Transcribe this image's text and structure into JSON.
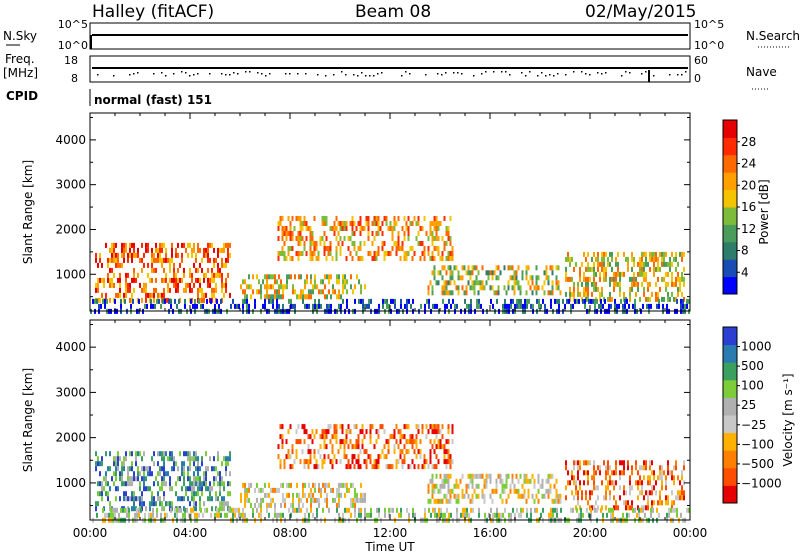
{
  "header": {
    "station": "Halley (fitACF)",
    "beam": "Beam 08",
    "date": "02/May/2015"
  },
  "top_panels": {
    "nsky_label": "N.Sky",
    "nsky_ticks": [
      "10^5",
      "10^0"
    ],
    "nsearch_label": "N.Search",
    "nsearch_ticks": [
      "10^5",
      "10^0"
    ],
    "freq_label": "Freq.",
    "freq_unit": "[MHz]",
    "freq_ticks": [
      "18",
      "8"
    ],
    "nave_label": "Nave",
    "nave_ticks": [
      "60",
      "0"
    ],
    "cpid_label": "CPID",
    "cpid_value": "normal (fast) 151"
  },
  "colors": {
    "power_scale": [
      "#0000ff",
      "#1a4db3",
      "#2e7d6b",
      "#4a9c5a",
      "#7dbb3a",
      "#f5c400",
      "#ff9f00",
      "#ff6a00",
      "#ff2a00",
      "#e60000"
    ],
    "velocity_scale": [
      "#e60000",
      "#ff4d00",
      "#ff8000",
      "#ffb000",
      "#c8c8c8",
      "#b0b0b0",
      "#7dcc3a",
      "#3aa060",
      "#2a7bb0",
      "#2b3fd0"
    ]
  },
  "chart_data": [
    {
      "type": "heatmap",
      "name": "power",
      "xlabel": "",
      "ylabel": "Slant Range [km]",
      "xlim": [
        0,
        24
      ],
      "ylim": [
        180,
        4600
      ],
      "yticks": [
        "1000",
        "2000",
        "3000",
        "4000"
      ],
      "colorbar_label": "Power [dB]",
      "colorbar_ticks": [
        "4",
        "8",
        "12",
        "16",
        "20",
        "24",
        "28"
      ],
      "scatter_regions": [
        {
          "t0": 0.2,
          "t1": 5.6,
          "r0": 400,
          "r1": 1700,
          "level": 0.75
        },
        {
          "t0": 6.0,
          "t1": 11.0,
          "r0": 500,
          "r1": 1000,
          "level": 0.55
        },
        {
          "t0": 7.5,
          "t1": 14.5,
          "r0": 1400,
          "r1": 2300,
          "level": 0.65
        },
        {
          "t0": 13.5,
          "t1": 18.8,
          "r0": 600,
          "r1": 1200,
          "level": 0.5
        },
        {
          "t0": 19.0,
          "t1": 23.8,
          "r0": 400,
          "r1": 1500,
          "level": 0.55
        },
        {
          "t0": 0.0,
          "t1": 24.0,
          "r0": 200,
          "r1": 450,
          "level": 0.15
        }
      ]
    },
    {
      "type": "heatmap",
      "name": "velocity",
      "xlabel": "Time UT",
      "ylabel": "Slant Range [km]",
      "xlim": [
        0,
        24
      ],
      "ylim": [
        180,
        4600
      ],
      "xticks": [
        "00:00",
        "04:00",
        "08:00",
        "12:00",
        "16:00",
        "20:00",
        "00:00"
      ],
      "yticks": [
        "1000",
        "2000",
        "3000",
        "4000"
      ],
      "colorbar_label": "Velocity [m s⁻¹]",
      "colorbar_ticks": [
        "1000",
        "500",
        "100",
        "25",
        "−25",
        "−100",
        "−500",
        "−1000"
      ],
      "scatter_regions": [
        {
          "t0": 0.2,
          "t1": 5.6,
          "r0": 400,
          "r1": 1700,
          "level": 0.75
        },
        {
          "t0": 6.0,
          "t1": 11.0,
          "r0": 500,
          "r1": 1000,
          "level": 0.45
        },
        {
          "t0": 7.5,
          "t1": 14.5,
          "r0": 1400,
          "r1": 2300,
          "level": 0.2
        },
        {
          "t0": 13.5,
          "t1": 18.8,
          "r0": 600,
          "r1": 1200,
          "level": 0.45
        },
        {
          "t0": 19.0,
          "t1": 23.8,
          "r0": 400,
          "r1": 1500,
          "level": 0.25
        },
        {
          "t0": 0.0,
          "t1": 24.0,
          "r0": 200,
          "r1": 450,
          "level": 0.55
        }
      ]
    }
  ]
}
